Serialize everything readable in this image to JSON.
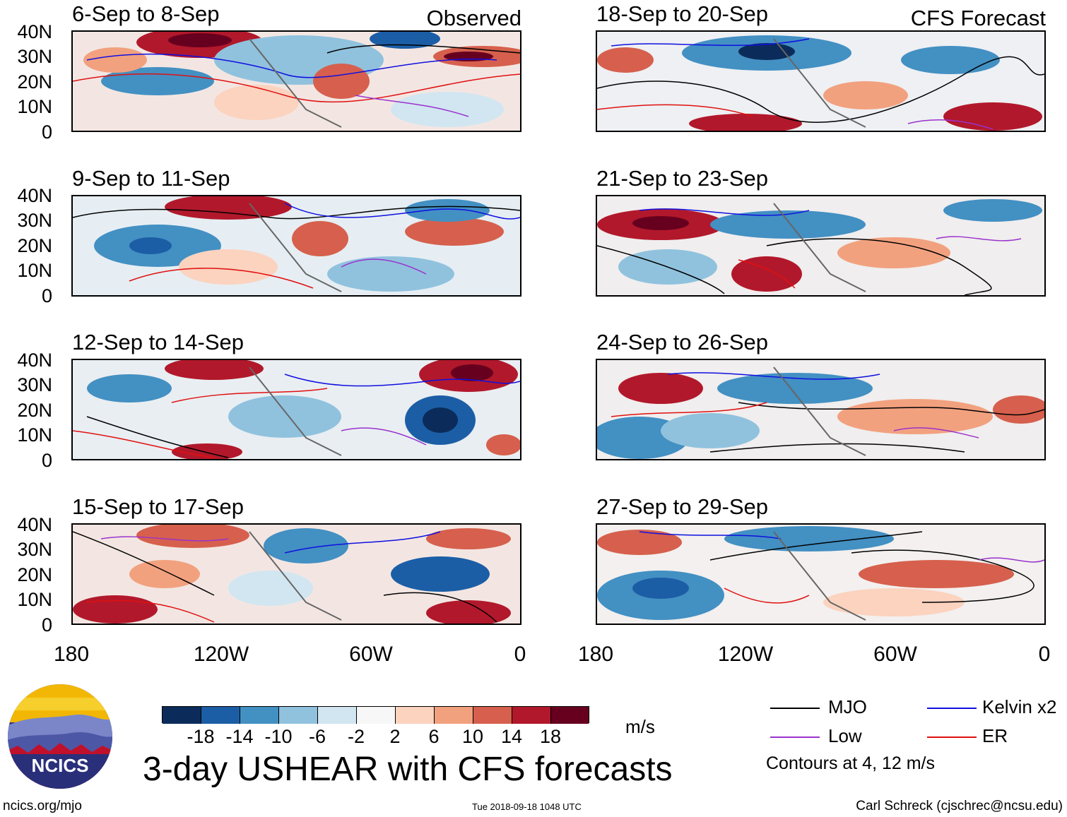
{
  "figure": {
    "title": "3-day USHEAR with CFS forecasts",
    "observed_label": "Observed",
    "forecast_label": "CFS Forecast",
    "units": "m/s",
    "website": "ncics.org/mjo",
    "timestamp": "Tue 2018-09-18 1048 UTC",
    "author": "Carl Schreck (cjschrec@ncsu.edu)",
    "logo_text": "NCICS",
    "contours_note": "Contours at 4, 12 m/s"
  },
  "panels_left": [
    {
      "label": "6-Sep to 8-Sep"
    },
    {
      "label": "9-Sep to 11-Sep"
    },
    {
      "label": "12-Sep to 14-Sep"
    },
    {
      "label": "15-Sep to 17-Sep"
    }
  ],
  "panels_right": [
    {
      "label": "18-Sep to 20-Sep"
    },
    {
      "label": "21-Sep to 23-Sep"
    },
    {
      "label": "24-Sep to 26-Sep"
    },
    {
      "label": "27-Sep to 29-Sep"
    }
  ],
  "y_ticks": [
    "40N",
    "30N",
    "20N",
    "10N",
    "0"
  ],
  "x_ticks": [
    "180",
    "120W",
    "60W",
    "0"
  ],
  "colorbar": {
    "colors": [
      "#0b2c5a",
      "#1c5ea6",
      "#4390c3",
      "#90c2de",
      "#d1e6f1",
      "#f7f7f7",
      "#fbd3bf",
      "#f2a17f",
      "#d6604d",
      "#b2182b",
      "#67001f"
    ],
    "ticks": [
      "-18",
      "-14",
      "-10",
      "-6",
      "-2",
      "2",
      "6",
      "10",
      "14",
      "18"
    ]
  },
  "legend": [
    {
      "name": "MJO",
      "color": "#000000"
    },
    {
      "name": "Kelvin x2",
      "color": "#1010e0"
    },
    {
      "name": "Low",
      "color": "#9a32cd"
    },
    {
      "name": "ER",
      "color": "#e01010"
    }
  ]
}
